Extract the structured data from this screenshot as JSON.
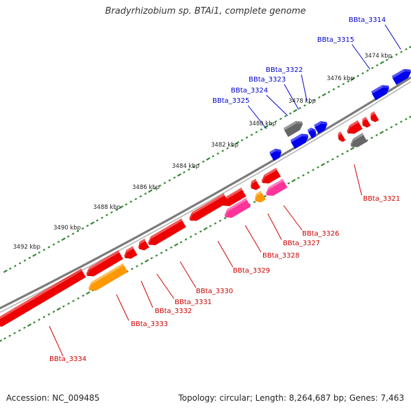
{
  "title": "Bradyrhizobium sp. BTAi1, complete genome",
  "footer": {
    "accession": "Accession: NC_009485",
    "topology": "Topology: circular; Length: 8,264,687 bp; Genes: 7,463"
  },
  "colors": {
    "forward_gene": "#0000ee",
    "reverse_gene": "#ee0000",
    "pseudo_gene": "#666666",
    "rna_gene": "#ff3399",
    "other_gene": "#ff9900",
    "backbone": "#7a7a7a",
    "tick": "#338833",
    "forward_label": "#0000cc",
    "reverse_label": "#cc0000"
  },
  "kbp_labels": [
    "3474 kbp",
    "3476 kbp",
    "3478 kbp",
    "3480 kbp",
    "3482 kbp",
    "3484 kbp",
    "3486 kbp",
    "3488 kbp",
    "3490 kbp",
    "3492 kbp"
  ],
  "forward_genes": [
    "BBta_3314",
    "BBta_3315",
    "BBta_3322",
    "BBta_3323",
    "BBta_3324",
    "BBta_3325"
  ],
  "reverse_genes": [
    "BBta_3321",
    "BBta_3326",
    "BBta_3327",
    "BBta_3328",
    "BBta_3329",
    "BBta_3330",
    "BBta_3331",
    "BBta_3332",
    "BBta_3333",
    "BBta_3334"
  ]
}
